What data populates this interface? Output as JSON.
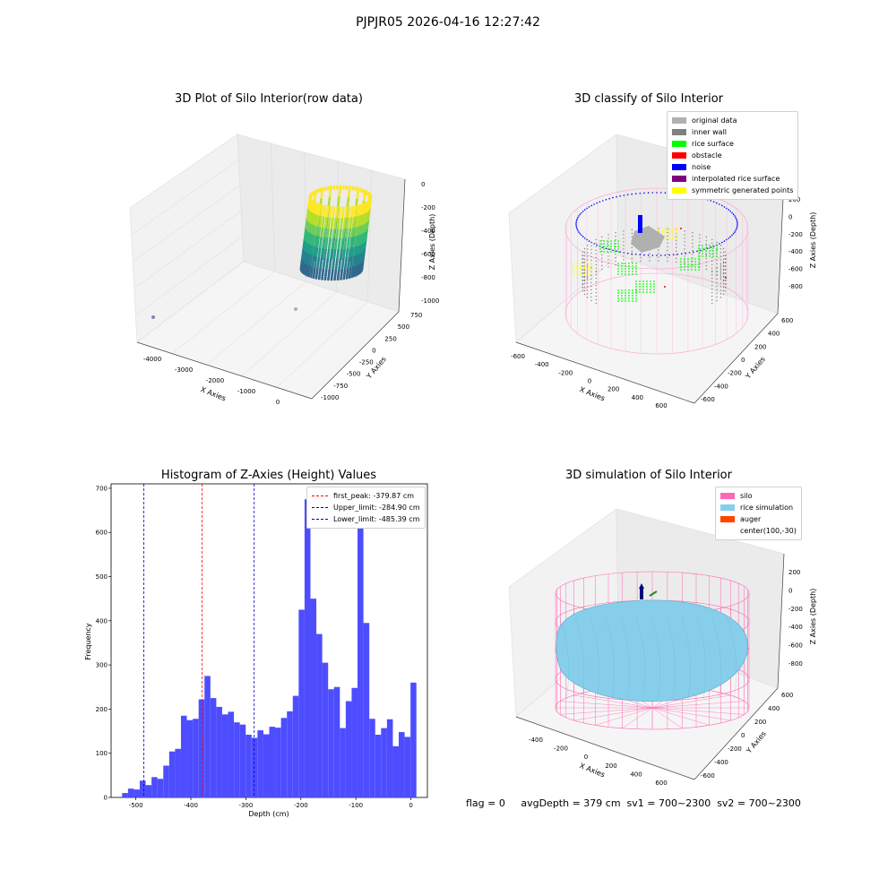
{
  "suptitle": "PJPJR05 2026-04-16 12:27:42",
  "colors": {
    "hist_bar": "#4d4dff",
    "first_peak": "#ff0000",
    "limits": "#0000cc",
    "silo": "#ff69b4",
    "rice": "#87ceeb",
    "auger": "#ff4500",
    "original": "#b0b0b0",
    "inner_wall": "#808080",
    "rice_surface": "#00ff00",
    "obstacle": "#ff0000",
    "noise": "#0000ff",
    "interpolated": "#800080",
    "symmetric": "#ffff00"
  },
  "raw_panel": {
    "title": "3D Plot of Silo Interior(row data)",
    "xlabel": "X Axies",
    "ylabel": "Y Axies",
    "zlabel": "Z Axies (Depth)",
    "x_ticks": [
      "-4000",
      "-3000",
      "-2000",
      "-1000",
      "0"
    ],
    "y_ticks": [
      "750",
      "500",
      "250",
      "0",
      "-250",
      "-500",
      "-750",
      "-1000"
    ],
    "z_ticks": [
      "0",
      "-200",
      "-400",
      "-600",
      "-800",
      "-1000"
    ]
  },
  "classify_panel": {
    "title": "3D classify of Silo Interior",
    "xlabel": "X Axies",
    "ylabel": "Y Axies",
    "zlabel": "Z Axies (Depth)",
    "x_ticks": [
      "-600",
      "-400",
      "-200",
      "0",
      "200",
      "400",
      "600"
    ],
    "y_ticks": [
      "600",
      "400",
      "200",
      "0",
      "-200",
      "-400",
      "-600"
    ],
    "z_ticks": [
      "200",
      "0",
      "-200",
      "-400",
      "-600",
      "-800"
    ],
    "z_tick_partial": "00",
    "legend": [
      {
        "label": "original data",
        "color": "#b0b0b0"
      },
      {
        "label": "inner wall",
        "color": "#808080"
      },
      {
        "label": "rice surface",
        "color": "#00ff00"
      },
      {
        "label": "obstacle",
        "color": "#ff0000"
      },
      {
        "label": "noise",
        "color": "#0000ff"
      },
      {
        "label": "interpolated rice surface",
        "color": "#800080"
      },
      {
        "label": "symmetric generated points",
        "color": "#ffff00"
      }
    ]
  },
  "sim_panel": {
    "title": "3D simulation of Silo Interior",
    "xlabel": "X Axies",
    "ylabel": "Y Axies",
    "zlabel": "Z Axies (Depth)",
    "x_ticks": [
      "-400",
      "-200",
      "0",
      "200",
      "400",
      "600"
    ],
    "y_ticks": [
      "600",
      "400",
      "200",
      "0",
      "-200",
      "-400",
      "-600"
    ],
    "z_ticks": [
      "200",
      "0",
      "-200",
      "-400",
      "-600",
      "-800"
    ],
    "legend": [
      {
        "label": "silo",
        "color": "#ff69b4"
      },
      {
        "label": "rice simulation",
        "color": "#87ceeb"
      },
      {
        "label": "auger",
        "color": "#ff4500"
      },
      {
        "label": "center(100,-30)",
        "color": ""
      }
    ]
  },
  "footer": {
    "text": "flag = 0     avgDepth = 379 cm  sv1 = 700~2300  sv2 = 700~2300"
  },
  "chart_data": [
    {
      "type": "bar",
      "title": "Histogram of Z-Axies (Height) Values",
      "xlabel": "Depth (cm)",
      "ylabel": "Frequency",
      "xlim": [
        -545,
        30
      ],
      "ylim": [
        0,
        710
      ],
      "x_ticks": [
        -500,
        -400,
        -300,
        -200,
        -100,
        0
      ],
      "y_ticks": [
        0,
        100,
        200,
        300,
        400,
        500,
        600,
        700
      ],
      "bin_start": -525,
      "bin_width": 10.7,
      "values": [
        10,
        20,
        18,
        38,
        28,
        46,
        42,
        72,
        104,
        110,
        185,
        175,
        178,
        222,
        275,
        225,
        205,
        188,
        194,
        170,
        165,
        142,
        135,
        152,
        143,
        160,
        158,
        180,
        195,
        230,
        425,
        675,
        450,
        370,
        305,
        245,
        250,
        157,
        218,
        248,
        620,
        395,
        178,
        142,
        157,
        177,
        116,
        148,
        137,
        260
      ],
      "vlines": [
        {
          "label": "first_peak: -379.87 cm",
          "x": -379.87,
          "color": "#ff0000"
        },
        {
          "label": "Upper_limit: -284.90 cm",
          "x": -284.9,
          "color": "#0000cc"
        },
        {
          "label": "Lower_limit: -485.39 cm",
          "x": -485.39,
          "color": "#0000cc"
        }
      ],
      "legend_loc": "upper right"
    }
  ]
}
